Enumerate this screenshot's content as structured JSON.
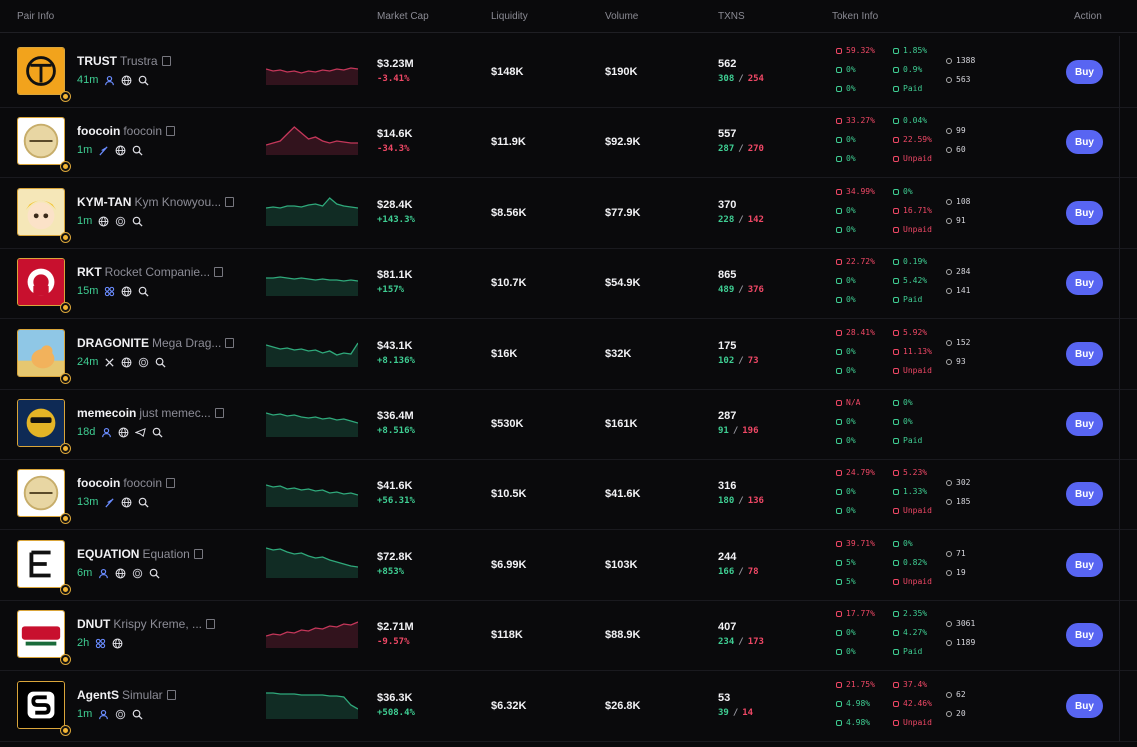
{
  "header": {
    "pair_info": "Pair Info",
    "market_cap": "Market Cap",
    "liquidity": "Liquidity",
    "volume": "Volume",
    "txns": "TXNS",
    "token_info": "Token Info",
    "action": "Action"
  },
  "colors": {
    "positive": "#3fce93",
    "negative": "#f04866",
    "buy_button": "#5865f2",
    "avatar_border": "#d9a53a"
  },
  "rows": [
    {
      "symbol": "TRUST",
      "name": "Trustra",
      "age": "41m",
      "socials": [
        "user-icon",
        "globe-icon",
        "search-icon"
      ],
      "trend": "down",
      "market_cap": "$3.23M",
      "change": "-3.41%",
      "liquidity": "$148K",
      "volume": "$190K",
      "txns": "562",
      "buys": "308",
      "sells": "254",
      "info": {
        "top10": "59.32%",
        "top10_c": "r",
        "dev": "1.85%",
        "dev_c": "g",
        "snipers": "0%",
        "snipers_c": "g",
        "insiders": "0.9%",
        "insiders_c": "g",
        "bundle": "0%",
        "bundle_c": "g",
        "dex": "Paid",
        "dex_c": "g"
      },
      "holders": "1388",
      "pro": "563",
      "buy": "Buy"
    },
    {
      "symbol": "foocoin",
      "name": "foocoin",
      "age": "1m",
      "socials": [
        "feather-icon",
        "globe-icon",
        "search-icon"
      ],
      "trend": "down",
      "market_cap": "$14.6K",
      "change": "-34.3%",
      "liquidity": "$11.9K",
      "volume": "$92.9K",
      "txns": "557",
      "buys": "287",
      "sells": "270",
      "info": {
        "top10": "33.27%",
        "top10_c": "r",
        "dev": "0.04%",
        "dev_c": "g",
        "snipers": "0%",
        "snipers_c": "g",
        "insiders": "22.59%",
        "insiders_c": "r",
        "bundle": "0%",
        "bundle_c": "g",
        "dex": "Unpaid",
        "dex_c": "r"
      },
      "holders": "99",
      "pro": "60",
      "buy": "Buy"
    },
    {
      "symbol": "KYM-TAN",
      "name": "Kym Knowyou...",
      "age": "1m",
      "socials": [
        "globe-icon",
        "pump-icon",
        "search-icon"
      ],
      "trend": "up",
      "market_cap": "$28.4K",
      "change": "+143.3%",
      "liquidity": "$8.56K",
      "volume": "$77.9K",
      "txns": "370",
      "buys": "228",
      "sells": "142",
      "info": {
        "top10": "34.99%",
        "top10_c": "r",
        "dev": "0%",
        "dev_c": "g",
        "snipers": "0%",
        "snipers_c": "g",
        "insiders": "16.71%",
        "insiders_c": "r",
        "bundle": "0%",
        "bundle_c": "g",
        "dex": "Unpaid",
        "dex_c": "r"
      },
      "holders": "108",
      "pro": "91",
      "buy": "Buy"
    },
    {
      "symbol": "RKT",
      "name": "Rocket Companie...",
      "age": "15m",
      "socials": [
        "community-icon",
        "globe-icon",
        "search-icon"
      ],
      "trend": "up",
      "market_cap": "$81.1K",
      "change": "+157%",
      "liquidity": "$10.7K",
      "volume": "$54.9K",
      "txns": "865",
      "buys": "489",
      "sells": "376",
      "info": {
        "top10": "22.72%",
        "top10_c": "r",
        "dev": "0.19%",
        "dev_c": "g",
        "snipers": "0%",
        "snipers_c": "g",
        "insiders": "5.42%",
        "insiders_c": "g",
        "bundle": "0%",
        "bundle_c": "g",
        "dex": "Paid",
        "dex_c": "g"
      },
      "holders": "284",
      "pro": "141",
      "buy": "Buy"
    },
    {
      "symbol": "DRAGONITE",
      "name": "Mega Drag...",
      "age": "24m",
      "socials": [
        "x-icon",
        "globe-icon",
        "pump-icon",
        "search-icon"
      ],
      "trend": "up",
      "market_cap": "$43.1K",
      "change": "+8.136%",
      "liquidity": "$16K",
      "volume": "$32K",
      "txns": "175",
      "buys": "102",
      "sells": "73",
      "info": {
        "top10": "28.41%",
        "top10_c": "r",
        "dev": "5.92%",
        "dev_c": "r",
        "snipers": "0%",
        "snipers_c": "g",
        "insiders": "11.13%",
        "insiders_c": "r",
        "bundle": "0%",
        "bundle_c": "g",
        "dex": "Unpaid",
        "dex_c": "r"
      },
      "holders": "152",
      "pro": "93",
      "buy": "Buy"
    },
    {
      "symbol": "memecoin",
      "name": "just memec...",
      "age": "18d",
      "socials": [
        "user-icon",
        "globe-icon",
        "telegram-icon",
        "search-icon"
      ],
      "trend": "up",
      "market_cap": "$36.4M",
      "change": "+8.516%",
      "liquidity": "$530K",
      "volume": "$161K",
      "txns": "287",
      "buys": "91",
      "sells": "196",
      "info": {
        "top10": "N/A",
        "top10_c": "r",
        "dev": "0%",
        "dev_c": "g",
        "snipers": "0%",
        "snipers_c": "g",
        "insiders": "0%",
        "insiders_c": "g",
        "bundle": "0%",
        "bundle_c": "g",
        "dex": "Paid",
        "dex_c": "g"
      },
      "holders": "",
      "pro": "",
      "buy": "Buy"
    },
    {
      "symbol": "foocoin",
      "name": "foocoin",
      "age": "13m",
      "socials": [
        "feather-icon",
        "globe-icon",
        "search-icon"
      ],
      "trend": "up",
      "market_cap": "$41.6K",
      "change": "+56.31%",
      "liquidity": "$10.5K",
      "volume": "$41.6K",
      "txns": "316",
      "buys": "180",
      "sells": "136",
      "info": {
        "top10": "24.79%",
        "top10_c": "r",
        "dev": "5.23%",
        "dev_c": "r",
        "snipers": "0%",
        "snipers_c": "g",
        "insiders": "1.33%",
        "insiders_c": "g",
        "bundle": "0%",
        "bundle_c": "g",
        "dex": "Unpaid",
        "dex_c": "r"
      },
      "holders": "302",
      "pro": "185",
      "buy": "Buy"
    },
    {
      "symbol": "EQUATION",
      "name": "Equation",
      "age": "6m",
      "socials": [
        "user-icon",
        "globe-icon",
        "pump-icon",
        "search-icon"
      ],
      "trend": "up",
      "market_cap": "$72.8K",
      "change": "+853%",
      "liquidity": "$6.99K",
      "volume": "$103K",
      "txns": "244",
      "buys": "166",
      "sells": "78",
      "info": {
        "top10": "39.71%",
        "top10_c": "r",
        "dev": "0%",
        "dev_c": "g",
        "snipers": "5%",
        "snipers_c": "g",
        "insiders": "0.82%",
        "insiders_c": "g",
        "bundle": "5%",
        "bundle_c": "g",
        "dex": "Unpaid",
        "dex_c": "r"
      },
      "holders": "71",
      "pro": "19",
      "buy": "Buy"
    },
    {
      "symbol": "DNUT",
      "name": "Krispy Kreme, ...",
      "age": "2h",
      "socials": [
        "community-icon",
        "globe-icon"
      ],
      "trend": "down",
      "market_cap": "$2.71M",
      "change": "-9.57%",
      "liquidity": "$118K",
      "volume": "$88.9K",
      "txns": "407",
      "buys": "234",
      "sells": "173",
      "info": {
        "top10": "17.77%",
        "top10_c": "r",
        "dev": "2.35%",
        "dev_c": "g",
        "snipers": "0%",
        "snipers_c": "g",
        "insiders": "4.27%",
        "insiders_c": "g",
        "bundle": "0%",
        "bundle_c": "g",
        "dex": "Paid",
        "dex_c": "g"
      },
      "holders": "3061",
      "pro": "1189",
      "buy": "Buy"
    },
    {
      "symbol": "AgentS",
      "name": "Simular",
      "age": "1m",
      "socials": [
        "user-icon",
        "pump-icon",
        "search-icon"
      ],
      "trend": "up",
      "market_cap": "$36.3K",
      "change": "+508.4%",
      "liquidity": "$6.32K",
      "volume": "$26.8K",
      "txns": "53",
      "buys": "39",
      "sells": "14",
      "info": {
        "top10": "21.75%",
        "top10_c": "r",
        "dev": "37.4%",
        "dev_c": "r",
        "snipers": "4.98%",
        "snipers_c": "g",
        "insiders": "42.46%",
        "insiders_c": "r",
        "bundle": "4.98%",
        "bundle_c": "g",
        "dex": "Unpaid",
        "dex_c": "r"
      },
      "holders": "62",
      "pro": "20",
      "buy": "Buy"
    }
  ]
}
